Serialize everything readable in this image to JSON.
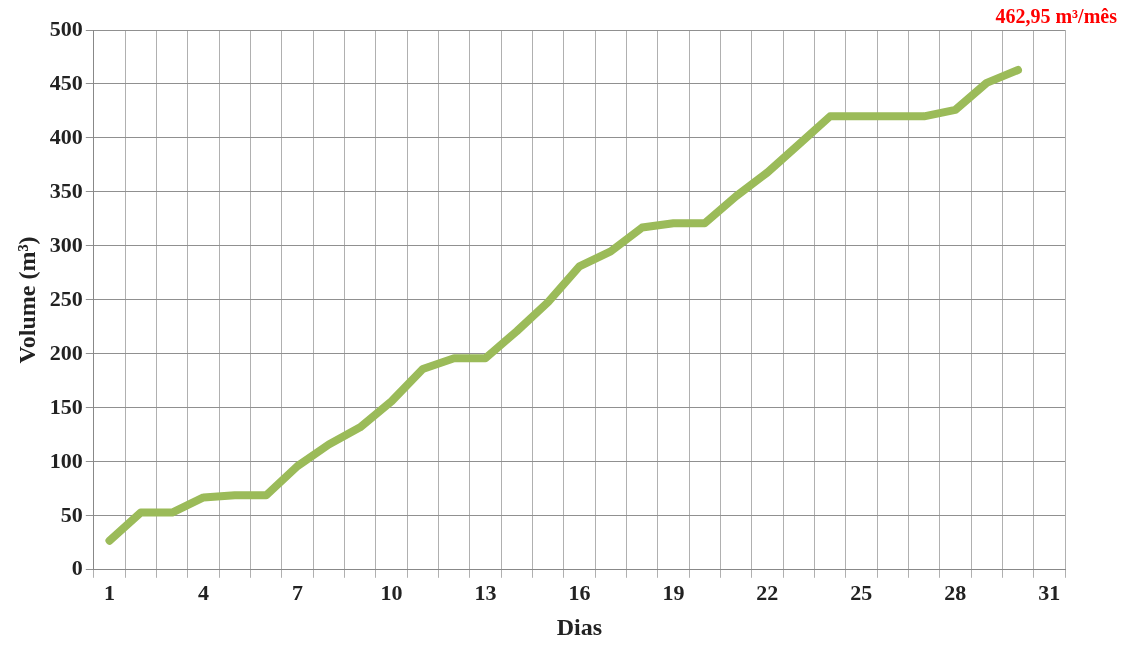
{
  "chart_data": {
    "type": "line",
    "xlabel": "Dias",
    "ylabel": "Volume (m³)",
    "categories": [
      "1",
      null,
      null,
      "4",
      null,
      null,
      "7",
      null,
      null,
      "10",
      null,
      null,
      "13",
      null,
      null,
      "16",
      null,
      null,
      "19",
      null,
      null,
      "22",
      null,
      null,
      "25",
      null,
      null,
      "28",
      null,
      null,
      "31"
    ],
    "series": [
      {
        "color": "#9bbb59",
        "values": [
          27,
          53,
          53,
          67,
          69,
          69,
          96,
          116,
          132,
          156,
          186,
          196,
          196,
          221,
          248,
          281,
          295,
          317,
          321,
          321,
          346,
          368,
          394,
          420,
          420,
          420,
          420,
          426,
          451,
          462.95,
          null
        ]
      }
    ],
    "ylim": [
      0,
      500
    ],
    "yticks": [
      0,
      50,
      100,
      150,
      200,
      250,
      300,
      350,
      400,
      450,
      500
    ],
    "grid": true,
    "annotations": [
      "462,95 m³/mês"
    ]
  }
}
